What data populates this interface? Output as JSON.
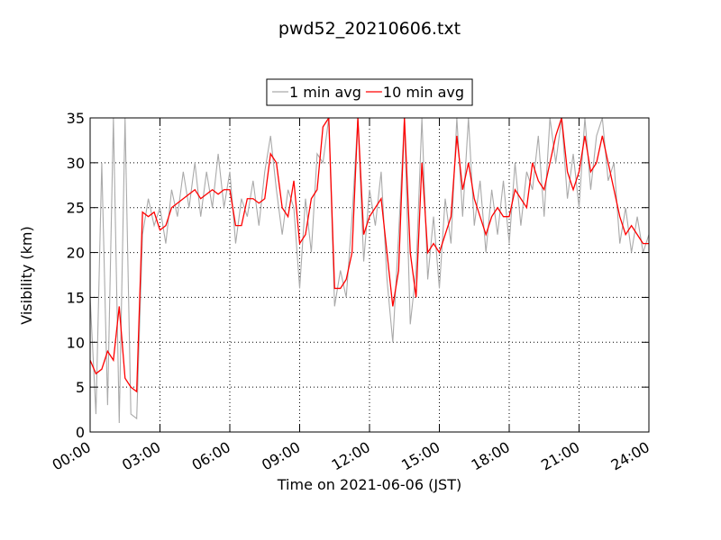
{
  "chart_data": {
    "type": "line",
    "title": "pwd52_20210606.txt",
    "xlabel": "Time on 2021-06-06 (JST)",
    "ylabel": "Visibility (km)",
    "x": [
      0,
      0.25,
      0.5,
      0.75,
      1,
      1.25,
      1.5,
      1.75,
      2,
      2.25,
      2.5,
      2.75,
      3,
      3.25,
      3.5,
      3.75,
      4,
      4.25,
      4.5,
      4.75,
      5,
      5.25,
      5.5,
      5.75,
      6,
      6.25,
      6.5,
      6.75,
      7,
      7.25,
      7.5,
      7.75,
      8,
      8.25,
      8.5,
      8.75,
      9,
      9.25,
      9.5,
      9.75,
      10,
      10.25,
      10.5,
      10.75,
      11,
      11.25,
      11.5,
      11.75,
      12,
      12.25,
      12.5,
      12.75,
      13,
      13.25,
      13.5,
      13.75,
      14,
      14.25,
      14.5,
      14.75,
      15,
      15.25,
      15.5,
      15.75,
      16,
      16.25,
      16.5,
      16.75,
      17,
      17.25,
      17.5,
      17.75,
      18,
      18.25,
      18.5,
      18.75,
      19,
      19.25,
      19.5,
      19.75,
      20,
      20.25,
      20.5,
      20.75,
      21,
      21.25,
      21.5,
      21.75,
      22,
      22.25,
      22.5,
      22.75,
      23,
      23.25,
      23.5,
      23.75,
      24
    ],
    "series": [
      {
        "name": "1 min avg",
        "color": "#aaaaaa",
        "values": [
          15,
          2,
          30,
          3,
          35,
          1,
          35,
          2,
          1.5,
          22,
          26,
          23,
          25,
          21,
          27,
          24,
          29,
          25,
          30,
          24,
          29,
          25,
          31,
          25,
          29,
          21,
          26,
          24,
          28,
          23,
          29,
          33,
          27,
          22,
          27,
          25,
          16,
          26,
          20,
          31,
          30,
          35,
          14,
          18,
          15,
          24,
          35,
          19,
          27,
          23,
          29,
          17,
          10,
          22,
          35,
          12,
          18,
          35,
          17,
          24,
          16,
          26,
          21,
          35,
          24,
          35,
          23,
          28,
          20,
          27,
          22,
          28,
          21,
          30,
          23,
          29,
          27,
          33,
          24,
          35,
          30,
          35,
          26,
          31,
          25,
          35,
          27,
          33,
          35,
          28,
          30,
          21,
          25,
          20,
          24,
          20,
          22
        ]
      },
      {
        "name": "10 min avg",
        "color": "#ff0000",
        "values": [
          8,
          6.5,
          7,
          9,
          8,
          14,
          6,
          5,
          4.5,
          24.5,
          24,
          24.5,
          22.5,
          23,
          25,
          25.5,
          26,
          26.5,
          27,
          26,
          26.5,
          27,
          26.5,
          27,
          27,
          23,
          23,
          26,
          26,
          25.5,
          26,
          31,
          30,
          25,
          24,
          28,
          21,
          22,
          26,
          27,
          34,
          35,
          16,
          16,
          17,
          20,
          35,
          22,
          24,
          25,
          26,
          20,
          14,
          18,
          35,
          20,
          15,
          30,
          20,
          21,
          20,
          22,
          24,
          33,
          27,
          30,
          26,
          24,
          22,
          24,
          25,
          24,
          24,
          27,
          26,
          25,
          30,
          28,
          27,
          30,
          33,
          35,
          29,
          27,
          29,
          33,
          29,
          30,
          33,
          30,
          27,
          24,
          22,
          23,
          22,
          21,
          21
        ]
      }
    ],
    "xlim": [
      0,
      24
    ],
    "xticks": [
      {
        "value": 0,
        "label": "00:00"
      },
      {
        "value": 3,
        "label": "03:00"
      },
      {
        "value": 6,
        "label": "06:00"
      },
      {
        "value": 9,
        "label": "09:00"
      },
      {
        "value": 12,
        "label": "12:00"
      },
      {
        "value": 15,
        "label": "15:00"
      },
      {
        "value": 18,
        "label": "18:00"
      },
      {
        "value": 21,
        "label": "21:00"
      },
      {
        "value": 24,
        "label": "24:00"
      }
    ],
    "ylim": [
      0,
      35
    ],
    "yticks": [
      0,
      5,
      10,
      15,
      20,
      25,
      30,
      35
    ],
    "grid": true,
    "legend": "upper center"
  }
}
